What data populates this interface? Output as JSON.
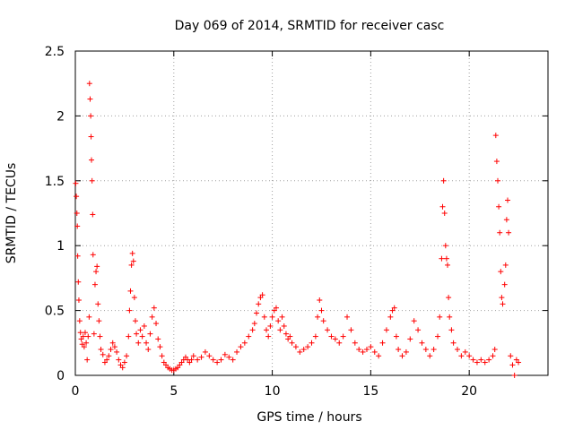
{
  "chart_data": {
    "type": "scatter",
    "title": "Day 069 of 2014, SRMTID for receiver casc",
    "xlabel": "GPS time / hours",
    "ylabel": "SRMTID / TECUs",
    "xlim": [
      0,
      24
    ],
    "ylim": [
      0,
      2.5
    ],
    "xticks": [
      0,
      5,
      10,
      15,
      20
    ],
    "xtick_labels": [
      "0",
      "5",
      "10",
      "15",
      "20"
    ],
    "yticks": [
      0,
      0.5,
      1,
      1.5,
      2,
      2.5
    ],
    "ytick_labels": [
      "0",
      "0.5",
      "1",
      "1.5",
      "2",
      "2.5"
    ],
    "grid": true,
    "marker": "+",
    "marker_color": "#ff0000",
    "series": [
      {
        "name": "SRMTID",
        "points": [
          [
            0.02,
            1.48
          ],
          [
            0.05,
            1.38
          ],
          [
            0.08,
            1.25
          ],
          [
            0.1,
            1.15
          ],
          [
            0.12,
            0.92
          ],
          [
            0.15,
            0.72
          ],
          [
            0.18,
            0.58
          ],
          [
            0.22,
            0.42
          ],
          [
            0.26,
            0.33
          ],
          [
            0.3,
            0.28
          ],
          [
            0.35,
            0.24
          ],
          [
            0.4,
            0.3
          ],
          [
            0.45,
            0.22
          ],
          [
            0.5,
            0.33
          ],
          [
            0.55,
            0.25
          ],
          [
            0.6,
            0.12
          ],
          [
            0.65,
            0.3
          ],
          [
            0.7,
            0.45
          ],
          [
            0.72,
            2.25
          ],
          [
            0.75,
            2.13
          ],
          [
            0.78,
            2.0
          ],
          [
            0.8,
            1.84
          ],
          [
            0.82,
            1.66
          ],
          [
            0.85,
            1.5
          ],
          [
            0.88,
            1.24
          ],
          [
            0.9,
            0.93
          ],
          [
            0.95,
            0.32
          ],
          [
            1.0,
            0.7
          ],
          [
            1.05,
            0.8
          ],
          [
            1.1,
            0.84
          ],
          [
            1.15,
            0.55
          ],
          [
            1.2,
            0.42
          ],
          [
            1.25,
            0.3
          ],
          [
            1.3,
            0.2
          ],
          [
            1.4,
            0.16
          ],
          [
            1.5,
            0.1
          ],
          [
            1.6,
            0.12
          ],
          [
            1.7,
            0.15
          ],
          [
            1.8,
            0.2
          ],
          [
            1.9,
            0.25
          ],
          [
            2.0,
            0.22
          ],
          [
            2.1,
            0.18
          ],
          [
            2.2,
            0.12
          ],
          [
            2.3,
            0.08
          ],
          [
            2.4,
            0.06
          ],
          [
            2.5,
            0.1
          ],
          [
            2.6,
            0.15
          ],
          [
            2.7,
            0.3
          ],
          [
            2.75,
            0.5
          ],
          [
            2.8,
            0.65
          ],
          [
            2.85,
            0.85
          ],
          [
            2.9,
            0.94
          ],
          [
            2.95,
            0.88
          ],
          [
            3.0,
            0.6
          ],
          [
            3.05,
            0.42
          ],
          [
            3.1,
            0.32
          ],
          [
            3.2,
            0.25
          ],
          [
            3.3,
            0.35
          ],
          [
            3.4,
            0.3
          ],
          [
            3.5,
            0.38
          ],
          [
            3.6,
            0.25
          ],
          [
            3.7,
            0.2
          ],
          [
            3.8,
            0.32
          ],
          [
            3.9,
            0.45
          ],
          [
            4.0,
            0.52
          ],
          [
            4.1,
            0.4
          ],
          [
            4.2,
            0.28
          ],
          [
            4.3,
            0.22
          ],
          [
            4.4,
            0.15
          ],
          [
            4.5,
            0.1
          ],
          [
            4.6,
            0.08
          ],
          [
            4.7,
            0.06
          ],
          [
            4.8,
            0.05
          ],
          [
            4.9,
            0.04
          ],
          [
            5.0,
            0.04
          ],
          [
            5.1,
            0.05
          ],
          [
            5.2,
            0.06
          ],
          [
            5.3,
            0.08
          ],
          [
            5.4,
            0.1
          ],
          [
            5.5,
            0.12
          ],
          [
            5.6,
            0.14
          ],
          [
            5.7,
            0.12
          ],
          [
            5.8,
            0.1
          ],
          [
            5.9,
            0.12
          ],
          [
            6.0,
            0.15
          ],
          [
            6.2,
            0.12
          ],
          [
            6.4,
            0.14
          ],
          [
            6.6,
            0.18
          ],
          [
            6.8,
            0.15
          ],
          [
            7.0,
            0.12
          ],
          [
            7.2,
            0.1
          ],
          [
            7.4,
            0.12
          ],
          [
            7.6,
            0.16
          ],
          [
            7.8,
            0.14
          ],
          [
            8.0,
            0.12
          ],
          [
            8.2,
            0.18
          ],
          [
            8.4,
            0.22
          ],
          [
            8.6,
            0.25
          ],
          [
            8.8,
            0.3
          ],
          [
            9.0,
            0.35
          ],
          [
            9.1,
            0.4
          ],
          [
            9.2,
            0.48
          ],
          [
            9.3,
            0.55
          ],
          [
            9.4,
            0.6
          ],
          [
            9.5,
            0.62
          ],
          [
            9.6,
            0.45
          ],
          [
            9.7,
            0.35
          ],
          [
            9.8,
            0.3
          ],
          [
            9.9,
            0.38
          ],
          [
            10.0,
            0.45
          ],
          [
            10.1,
            0.5
          ],
          [
            10.2,
            0.52
          ],
          [
            10.3,
            0.42
          ],
          [
            10.4,
            0.35
          ],
          [
            10.5,
            0.45
          ],
          [
            10.6,
            0.38
          ],
          [
            10.7,
            0.32
          ],
          [
            10.8,
            0.28
          ],
          [
            10.9,
            0.3
          ],
          [
            11.0,
            0.25
          ],
          [
            11.2,
            0.22
          ],
          [
            11.4,
            0.18
          ],
          [
            11.6,
            0.2
          ],
          [
            11.8,
            0.22
          ],
          [
            12.0,
            0.25
          ],
          [
            12.2,
            0.3
          ],
          [
            12.3,
            0.45
          ],
          [
            12.4,
            0.58
          ],
          [
            12.5,
            0.5
          ],
          [
            12.6,
            0.42
          ],
          [
            12.8,
            0.35
          ],
          [
            13.0,
            0.3
          ],
          [
            13.2,
            0.28
          ],
          [
            13.4,
            0.25
          ],
          [
            13.6,
            0.3
          ],
          [
            13.8,
            0.45
          ],
          [
            14.0,
            0.35
          ],
          [
            14.2,
            0.25
          ],
          [
            14.4,
            0.2
          ],
          [
            14.6,
            0.18
          ],
          [
            14.8,
            0.2
          ],
          [
            15.0,
            0.22
          ],
          [
            15.2,
            0.18
          ],
          [
            15.4,
            0.15
          ],
          [
            15.6,
            0.25
          ],
          [
            15.8,
            0.35
          ],
          [
            16.0,
            0.45
          ],
          [
            16.1,
            0.5
          ],
          [
            16.2,
            0.52
          ],
          [
            16.3,
            0.3
          ],
          [
            16.4,
            0.2
          ],
          [
            16.6,
            0.15
          ],
          [
            16.8,
            0.18
          ],
          [
            17.0,
            0.28
          ],
          [
            17.2,
            0.42
          ],
          [
            17.4,
            0.35
          ],
          [
            17.6,
            0.25
          ],
          [
            17.8,
            0.2
          ],
          [
            18.0,
            0.15
          ],
          [
            18.2,
            0.2
          ],
          [
            18.4,
            0.3
          ],
          [
            18.5,
            0.45
          ],
          [
            18.6,
            0.9
          ],
          [
            18.65,
            1.3
          ],
          [
            18.7,
            1.5
          ],
          [
            18.75,
            1.25
          ],
          [
            18.8,
            1.0
          ],
          [
            18.85,
            0.9
          ],
          [
            18.9,
            0.85
          ],
          [
            18.95,
            0.6
          ],
          [
            19.0,
            0.45
          ],
          [
            19.1,
            0.35
          ],
          [
            19.2,
            0.25
          ],
          [
            19.4,
            0.2
          ],
          [
            19.6,
            0.15
          ],
          [
            19.8,
            0.18
          ],
          [
            20.0,
            0.15
          ],
          [
            20.2,
            0.12
          ],
          [
            20.4,
            0.1
          ],
          [
            20.6,
            0.12
          ],
          [
            20.8,
            0.1
          ],
          [
            21.0,
            0.12
          ],
          [
            21.2,
            0.15
          ],
          [
            21.3,
            0.2
          ],
          [
            21.35,
            1.85
          ],
          [
            21.4,
            1.65
          ],
          [
            21.45,
            1.5
          ],
          [
            21.5,
            1.3
          ],
          [
            21.55,
            1.1
          ],
          [
            21.6,
            0.8
          ],
          [
            21.65,
            0.6
          ],
          [
            21.7,
            0.55
          ],
          [
            21.8,
            0.7
          ],
          [
            21.85,
            0.85
          ],
          [
            21.9,
            1.2
          ],
          [
            21.95,
            1.35
          ],
          [
            22.0,
            1.1
          ],
          [
            22.1,
            0.15
          ],
          [
            22.2,
            0.08
          ],
          [
            22.3,
            0.0
          ],
          [
            22.4,
            0.12
          ],
          [
            22.5,
            0.1
          ]
        ]
      }
    ]
  }
}
